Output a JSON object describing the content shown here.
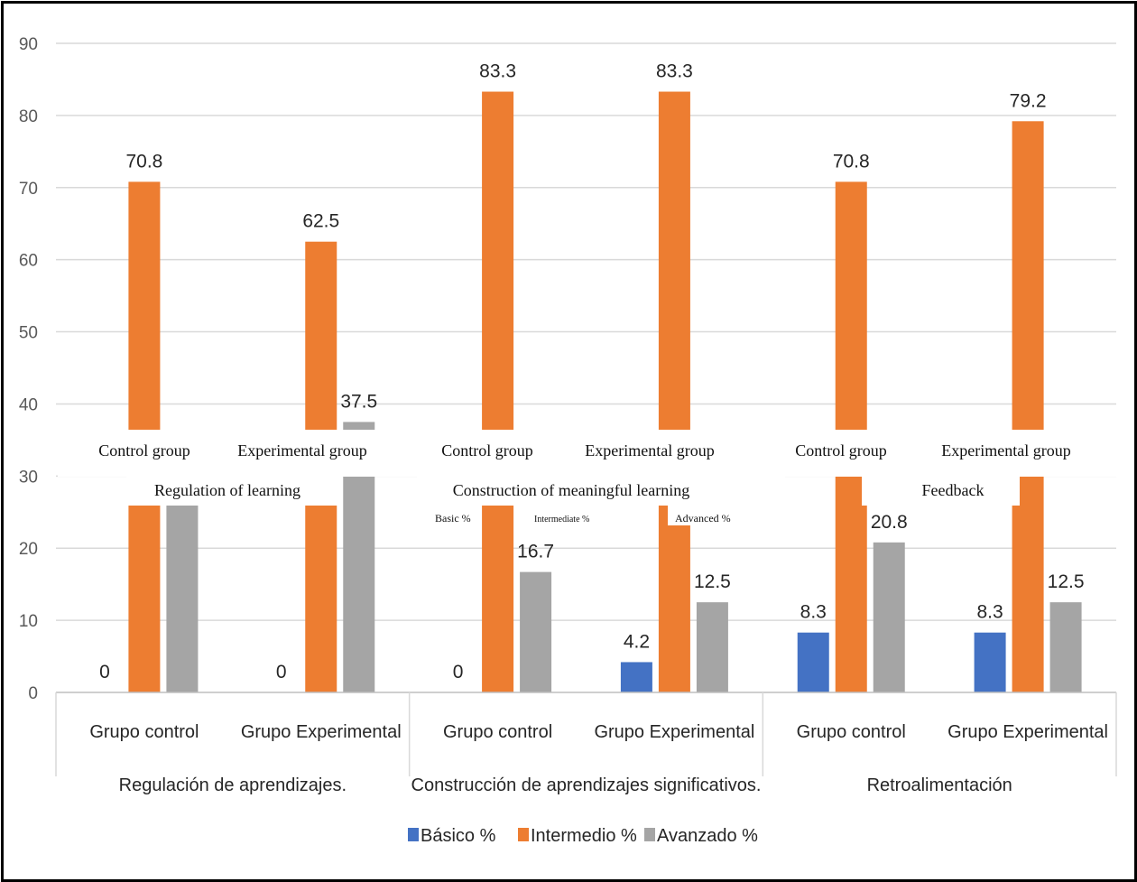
{
  "chart_data": {
    "type": "bar",
    "ylim": [
      0,
      90
    ],
    "yticks": [
      0,
      10,
      20,
      30,
      40,
      50,
      60,
      70,
      80,
      90
    ],
    "grid": true,
    "legend_position": "bottom",
    "groups": [
      {
        "label": "Regulación de aprendizajes.",
        "categories": [
          "Grupo control",
          "Grupo Experimental"
        ]
      },
      {
        "label": "Construcción de aprendizajes significativos.",
        "categories": [
          "Grupo control",
          "Grupo Experimental"
        ]
      },
      {
        "label": "Retroalimentación",
        "categories": [
          "Grupo control",
          "Grupo Experimental"
        ]
      }
    ],
    "series": [
      {
        "name": "Básico %",
        "color": "#4472C4",
        "values": [
          0,
          0,
          0,
          4.2,
          8.3,
          8.3
        ]
      },
      {
        "name": "Intermedio %",
        "color": "#ED7D31",
        "values": [
          70.8,
          62.5,
          83.3,
          83.3,
          70.8,
          79.2
        ]
      },
      {
        "name": "Avanzado %",
        "color": "#A5A5A5",
        "values": [
          29.2,
          37.5,
          16.7,
          12.5,
          20.8,
          12.5
        ]
      }
    ]
  },
  "overlay": {
    "category_labels": [
      "Control group",
      "Experimental group",
      "Control group",
      "Experimental group",
      "Control group",
      "Experimental group"
    ],
    "group_labels": [
      "Regulation of learning",
      "Construction of meaningful learning",
      "Feedback"
    ],
    "legend_labels": [
      "Basic %",
      "Intermediate %",
      "Advanced %"
    ]
  }
}
